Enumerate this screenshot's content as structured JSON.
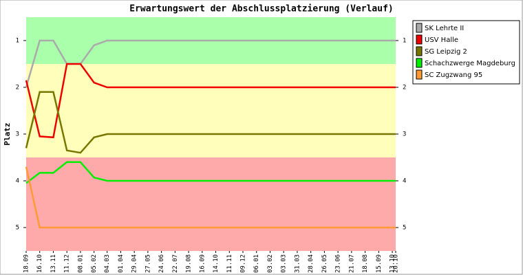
{
  "chart_data": {
    "type": "line",
    "title": "Erwartungswert der Abschlussplatzierung (Verlauf)",
    "y_label": "Platz",
    "categories": [
      "18.09",
      "16.10",
      "13.11",
      "11.12",
      "08.01",
      "05.02",
      "04.03",
      "01.04",
      "29.04",
      "27.05",
      "24.06",
      "22.07",
      "19.08",
      "16.09",
      "14.10",
      "11.11",
      "09.12",
      "06.01",
      "03.02",
      "03.03",
      "31.03",
      "28.04",
      "26.05",
      "23.06",
      "21.07",
      "18.08",
      "15.09",
      "13.10",
      "20.10"
    ],
    "ylim": [
      0.5,
      5.5
    ],
    "y_inverted": true,
    "yticks": [
      1,
      2,
      3,
      4,
      5
    ],
    "bands": [
      {
        "from": 0.5,
        "to": 1.5,
        "color": "#aaffaa"
      },
      {
        "from": 1.5,
        "to": 3.5,
        "color": "#ffffbb"
      },
      {
        "from": 3.5,
        "to": 5.5,
        "color": "#ffaaaa"
      }
    ],
    "series": [
      {
        "name": "SK Lehrte II",
        "color": "#aaaaaa",
        "values": [
          2,
          1,
          1,
          1.5,
          1.5,
          1.1,
          1,
          1,
          1,
          1,
          1,
          1,
          1,
          1,
          1,
          1,
          1,
          1,
          1,
          1,
          1,
          1,
          1,
          1,
          1,
          1,
          1,
          1,
          1
        ]
      },
      {
        "name": "USV Halle",
        "color": "#ee0000",
        "values": [
          1.85,
          3.05,
          3.07,
          1.5,
          1.5,
          1.9,
          2,
          2,
          2,
          2,
          2,
          2,
          2,
          2,
          2,
          2,
          2,
          2,
          2,
          2,
          2,
          2,
          2,
          2,
          2,
          2,
          2,
          2,
          2
        ]
      },
      {
        "name": "SG Leipzig 2",
        "color": "#777700",
        "values": [
          3.3,
          2.1,
          2.1,
          3.35,
          3.4,
          3.07,
          3,
          3,
          3,
          3,
          3,
          3,
          3,
          3,
          3,
          3,
          3,
          3,
          3,
          3,
          3,
          3,
          3,
          3,
          3,
          3,
          3,
          3,
          3
        ]
      },
      {
        "name": "Schachzwerge Magdeburg",
        "color": "#00ee00",
        "values": [
          4.05,
          3.83,
          3.83,
          3.6,
          3.6,
          3.93,
          4,
          4,
          4,
          4,
          4,
          4,
          4,
          4,
          4,
          4,
          4,
          4,
          4,
          4,
          4,
          4,
          4,
          4,
          4,
          4,
          4,
          4,
          4
        ]
      },
      {
        "name": "SC Zugzwang 95",
        "color": "#ff9933",
        "values": [
          3.7,
          5,
          5,
          5,
          5,
          5,
          5,
          5,
          5,
          5,
          5,
          5,
          5,
          5,
          5,
          5,
          5,
          5,
          5,
          5,
          5,
          5,
          5,
          5,
          5,
          5,
          5,
          5,
          5
        ]
      }
    ]
  }
}
